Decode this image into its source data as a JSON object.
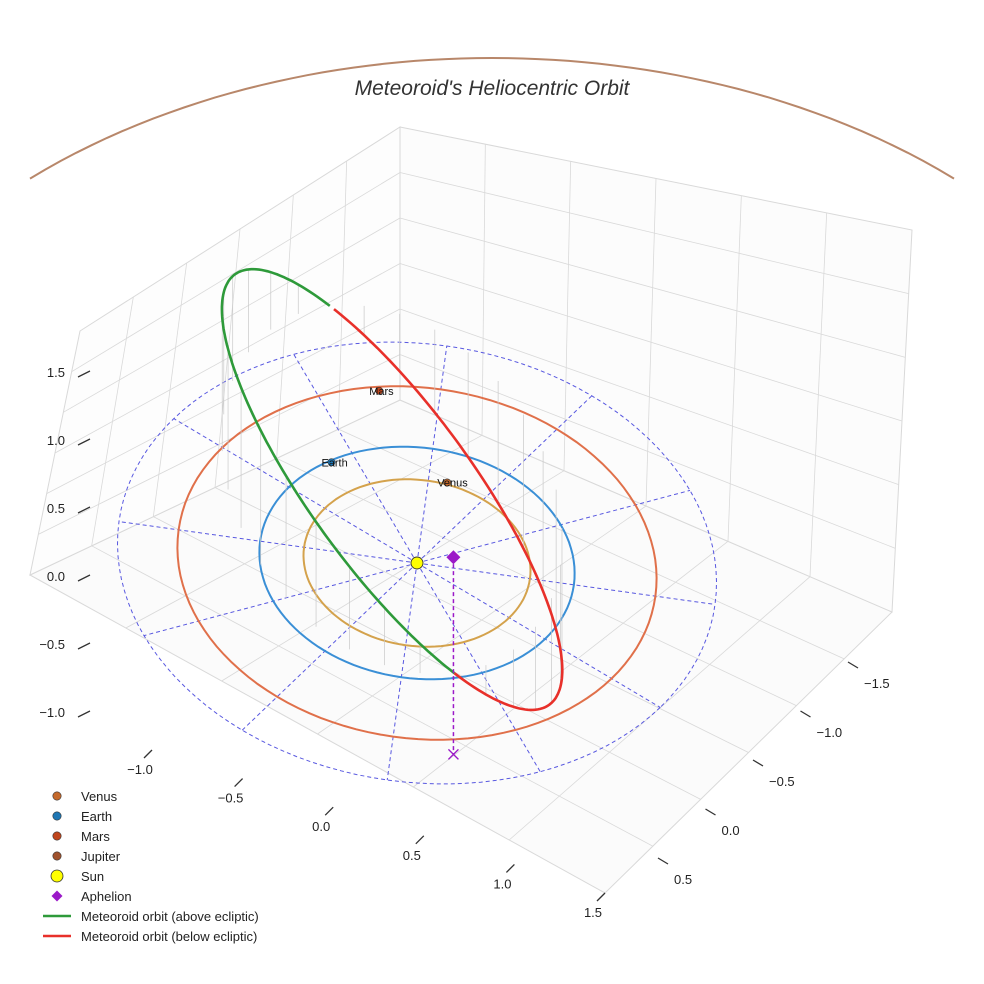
{
  "chart_data": {
    "type": "3d-orbit",
    "title": "Meteoroid's Heliocentric Orbit",
    "axes": {
      "x_ticks": [
        "−1.0",
        "−0.5",
        "0.0",
        "0.5",
        "1.0",
        "1.5"
      ],
      "y_ticks": [
        "−1.5",
        "−1.0",
        "−0.5",
        "0.0",
        "0.5"
      ],
      "z_ticks": [
        "1.5",
        "1.0",
        "0.5",
        "0.0",
        "−0.5",
        "−1.0"
      ],
      "xlim": [
        -1.5,
        1.5
      ],
      "ylim": [
        -1.9,
        0.7
      ],
      "zlim": [
        -1.2,
        1.6
      ],
      "grid": true
    },
    "orbits": [
      {
        "name": "Venus",
        "radius_au": 0.72,
        "color": "#d4a24c"
      },
      {
        "name": "Earth",
        "radius_au": 1.0,
        "color": "#3a8fd6"
      },
      {
        "name": "Mars",
        "radius_au": 1.52,
        "color": "#e0704a"
      }
    ],
    "planets": [
      {
        "name": "Venus",
        "x": -0.26,
        "y": -0.69,
        "z": 0.0,
        "color": "#c56a2c",
        "label": "Venus"
      },
      {
        "name": "Earth",
        "x": -0.92,
        "y": -0.35,
        "z": 0.0,
        "color": "#1f77b4",
        "label": "Earth"
      },
      {
        "name": "Mars",
        "x": -1.05,
        "y": -1.05,
        "z": 0.0,
        "color": "#c0461d",
        "label": "Mars"
      }
    ],
    "sun": {
      "x": 0.0,
      "y": 0.0,
      "z": 0.0,
      "color": "#ffff00"
    },
    "meteoroid_orbit": {
      "semi_major_axis_au": 1.6,
      "eccentricity": 0.4,
      "inclination_deg": 45,
      "aphelion_au": 2.24,
      "perihelion_au": 0.96,
      "above_color": "#2e9a3a",
      "below_color": "#e8302a"
    },
    "aphelion": {
      "x": 1.14,
      "y": 1.19,
      "z": 1.45,
      "color": "#9b19c8"
    },
    "reference_ring": {
      "radius_au": 1.9,
      "spokes": 12,
      "color": "#5858e0"
    },
    "legend": [
      {
        "label": "Venus",
        "kind": "dot",
        "color": "#c56a2c"
      },
      {
        "label": "Earth",
        "kind": "dot",
        "color": "#1f77b4"
      },
      {
        "label": "Mars",
        "kind": "dot",
        "color": "#c0461d"
      },
      {
        "label": "Jupiter",
        "kind": "dot",
        "color": "#a0522d"
      },
      {
        "label": "Sun",
        "kind": "sun",
        "color": "#ffff00"
      },
      {
        "label": "Aphelion",
        "kind": "diamond",
        "color": "#9b19c8"
      },
      {
        "label": "Meteoroid orbit (above ecliptic)",
        "kind": "line",
        "color": "#2e9a3a"
      },
      {
        "label": "Meteoroid orbit (below ecliptic)",
        "kind": "line",
        "color": "#e8302a"
      }
    ],
    "jupiter_arc_color": "#b8876a"
  }
}
